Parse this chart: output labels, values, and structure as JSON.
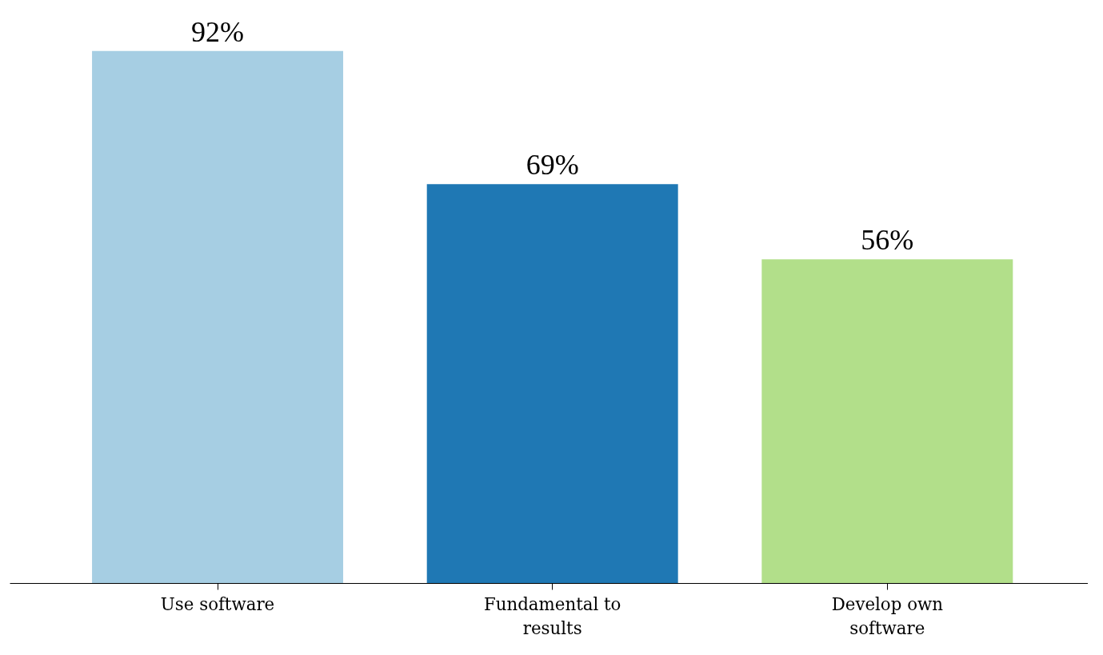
{
  "chart_data": {
    "type": "bar",
    "categories": [
      "Use software",
      "Fundamental to results",
      "Develop own software"
    ],
    "values": [
      92,
      69,
      56
    ],
    "colors": [
      "#a6cee3",
      "#1f78b4",
      "#b2df8a"
    ],
    "value_labels": [
      "92%",
      "69%",
      "56%"
    ],
    "grid": false
  }
}
